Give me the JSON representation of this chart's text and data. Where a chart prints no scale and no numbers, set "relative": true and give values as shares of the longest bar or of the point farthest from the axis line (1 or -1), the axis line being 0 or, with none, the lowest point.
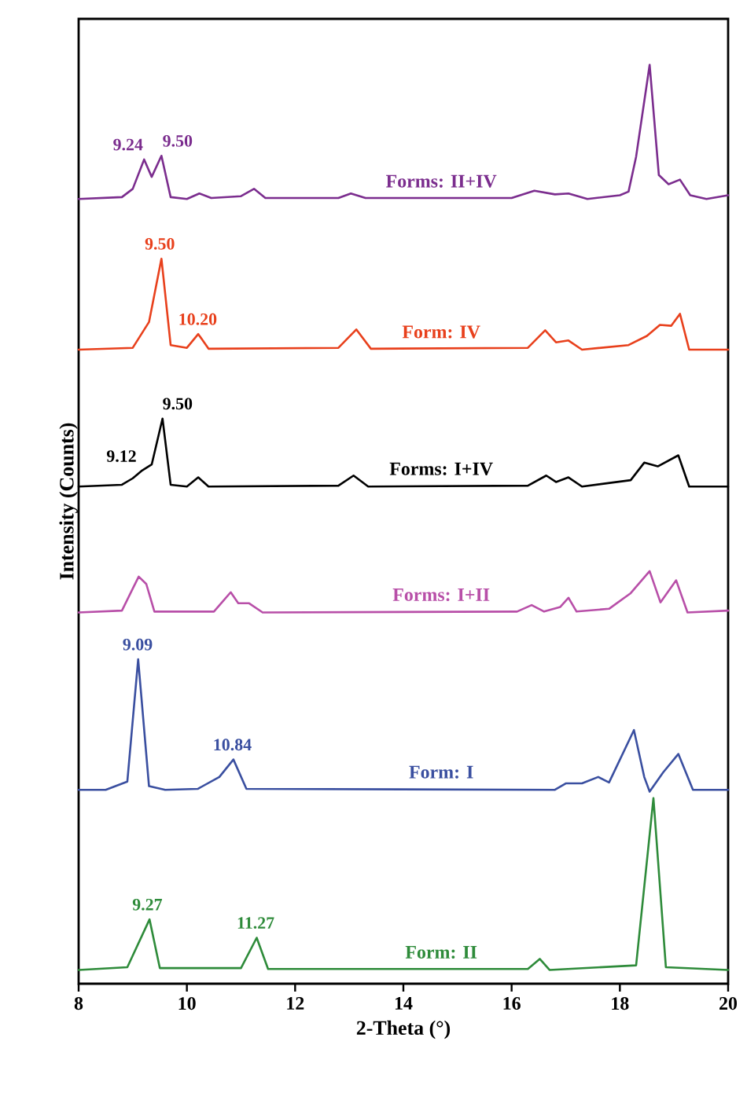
{
  "chart_data": {
    "type": "line",
    "relative": true,
    "xlabel": "2-Theta (°)",
    "ylabel": "Intensity (Counts)",
    "xlim": [
      8,
      20
    ],
    "xticks": [
      8,
      10,
      12,
      14,
      16,
      18,
      20
    ],
    "grid": false,
    "marker": "none",
    "line_style": "solid",
    "series": [
      {
        "name": "Forms: II+IV",
        "color": "#7b2d8e",
        "x": [
          8.0,
          8.8,
          9.0,
          9.21,
          9.35,
          9.53,
          9.7,
          10.0,
          10.23,
          10.45,
          11.0,
          11.24,
          11.45,
          12.8,
          13.03,
          13.3,
          16.0,
          16.42,
          16.8,
          17.05,
          17.4,
          18.0,
          18.16,
          18.3,
          18.55,
          18.72,
          18.9,
          19.11,
          19.3,
          19.6,
          20.0
        ],
        "values": [
          0.854,
          0.856,
          0.865,
          0.897,
          0.878,
          0.901,
          0.856,
          0.854,
          0.86,
          0.855,
          0.857,
          0.865,
          0.855,
          0.855,
          0.86,
          0.855,
          0.855,
          0.863,
          0.859,
          0.86,
          0.854,
          0.858,
          0.862,
          0.9,
          1.0,
          0.88,
          0.87,
          0.875,
          0.858,
          0.854,
          0.858
        ]
      },
      {
        "name": "Form: IV",
        "color": "#e8401c",
        "x": [
          8.0,
          9.0,
          9.3,
          9.53,
          9.7,
          10.0,
          10.21,
          10.4,
          12.8,
          13.13,
          13.4,
          16.3,
          16.62,
          16.82,
          17.05,
          17.3,
          18.16,
          18.5,
          18.74,
          18.95,
          19.11,
          19.28,
          20.0
        ],
        "values": [
          0.69,
          0.692,
          0.72,
          0.789,
          0.695,
          0.692,
          0.707,
          0.691,
          0.692,
          0.712,
          0.691,
          0.692,
          0.711,
          0.698,
          0.7,
          0.69,
          0.695,
          0.705,
          0.717,
          0.716,
          0.729,
          0.69,
          0.69
        ]
      },
      {
        "name": "Forms: I+IV",
        "color": "#000000",
        "x": [
          8.0,
          8.8,
          9.0,
          9.16,
          9.35,
          9.55,
          9.7,
          10.0,
          10.21,
          10.4,
          12.8,
          13.08,
          13.35,
          16.3,
          16.64,
          16.82,
          17.05,
          17.3,
          18.2,
          18.45,
          18.7,
          19.08,
          19.28,
          20.0
        ],
        "values": [
          0.541,
          0.543,
          0.55,
          0.558,
          0.565,
          0.615,
          0.543,
          0.541,
          0.551,
          0.541,
          0.542,
          0.553,
          0.541,
          0.542,
          0.553,
          0.546,
          0.551,
          0.541,
          0.548,
          0.567,
          0.563,
          0.575,
          0.541,
          0.541
        ]
      },
      {
        "name": "Forms: I+II",
        "color": "#b84fa8",
        "x": [
          8.0,
          8.8,
          9.0,
          9.11,
          9.25,
          9.4,
          10.5,
          10.81,
          10.95,
          11.15,
          11.4,
          16.1,
          16.37,
          16.6,
          16.9,
          17.05,
          17.2,
          17.8,
          18.2,
          18.55,
          18.75,
          19.04,
          19.25,
          20.0
        ],
        "values": [
          0.404,
          0.406,
          0.43,
          0.443,
          0.435,
          0.405,
          0.405,
          0.426,
          0.414,
          0.414,
          0.404,
          0.405,
          0.412,
          0.405,
          0.41,
          0.42,
          0.405,
          0.408,
          0.425,
          0.449,
          0.415,
          0.439,
          0.404,
          0.406
        ]
      },
      {
        "name": "Form: I",
        "color": "#3a4fa0",
        "x": [
          8.0,
          8.5,
          8.9,
          9.1,
          9.3,
          9.6,
          10.2,
          10.6,
          10.86,
          11.1,
          16.8,
          17.0,
          17.3,
          17.6,
          17.8,
          18.26,
          18.45,
          18.55,
          18.8,
          19.08,
          19.35,
          20.0
        ],
        "values": [
          0.211,
          0.211,
          0.22,
          0.353,
          0.215,
          0.211,
          0.212,
          0.225,
          0.244,
          0.212,
          0.211,
          0.218,
          0.218,
          0.225,
          0.219,
          0.276,
          0.225,
          0.209,
          0.23,
          0.25,
          0.211,
          0.211
        ]
      },
      {
        "name": "Form: II",
        "color": "#2e8b3a",
        "x": [
          8.0,
          8.9,
          9.31,
          9.5,
          11.0,
          11.29,
          11.5,
          16.3,
          16.52,
          16.7,
          18.3,
          18.62,
          18.85,
          20.0
        ],
        "values": [
          0.015,
          0.018,
          0.07,
          0.017,
          0.017,
          0.05,
          0.016,
          0.016,
          0.027,
          0.015,
          0.02,
          0.202,
          0.018,
          0.015
        ]
      }
    ],
    "annotations": [
      {
        "text": "9.24",
        "x": 9.24,
        "y": 0.897
      },
      {
        "text": "9.50",
        "x": 9.5,
        "y": 0.901
      },
      {
        "text": "9.50",
        "x": 9.5,
        "y": 0.789
      },
      {
        "text": "10.20",
        "x": 10.2,
        "y": 0.707
      },
      {
        "text": "9.12",
        "x": 9.12,
        "y": 0.558
      },
      {
        "text": "9.50",
        "x": 9.5,
        "y": 0.615
      },
      {
        "text": "9.09",
        "x": 9.09,
        "y": 0.353
      },
      {
        "text": "10.84",
        "x": 10.84,
        "y": 0.244
      },
      {
        "text": "9.27",
        "x": 9.27,
        "y": 0.07
      },
      {
        "text": "11.27",
        "x": 11.27,
        "y": 0.05
      }
    ]
  }
}
